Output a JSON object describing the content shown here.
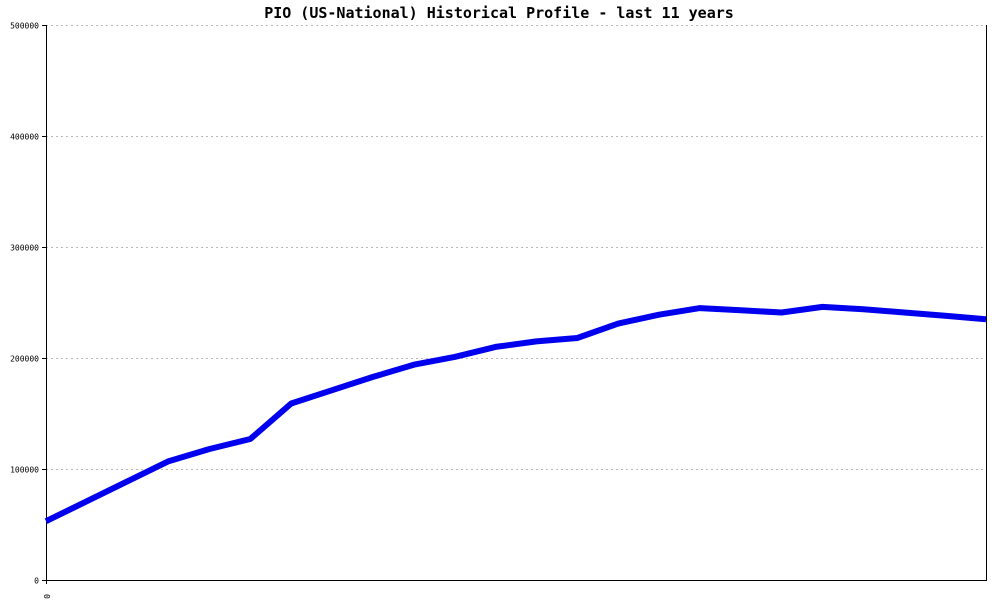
{
  "chart_data": {
    "type": "line",
    "title": "PIO (US-National) Historical Profile - last 11 years",
    "xlabel": "",
    "ylabel": "",
    "ylim": [
      0,
      500000
    ],
    "y_ticks": [
      0,
      100000,
      200000,
      300000,
      400000,
      500000
    ],
    "y_tick_labels": [
      "0",
      "100000",
      "200000",
      "300000",
      "400000",
      "500000"
    ],
    "x_tick_labels": [
      "0"
    ],
    "grid": true,
    "series": [
      {
        "color": "#0000ee",
        "values": [
          53000,
          71000,
          89000,
          107000,
          118000,
          127000,
          159000,
          171000,
          183000,
          194000,
          201000,
          210000,
          215000,
          218000,
          231000,
          239000,
          245000,
          243000,
          241000,
          246000,
          244000,
          241000,
          238000,
          235000
        ]
      }
    ]
  }
}
